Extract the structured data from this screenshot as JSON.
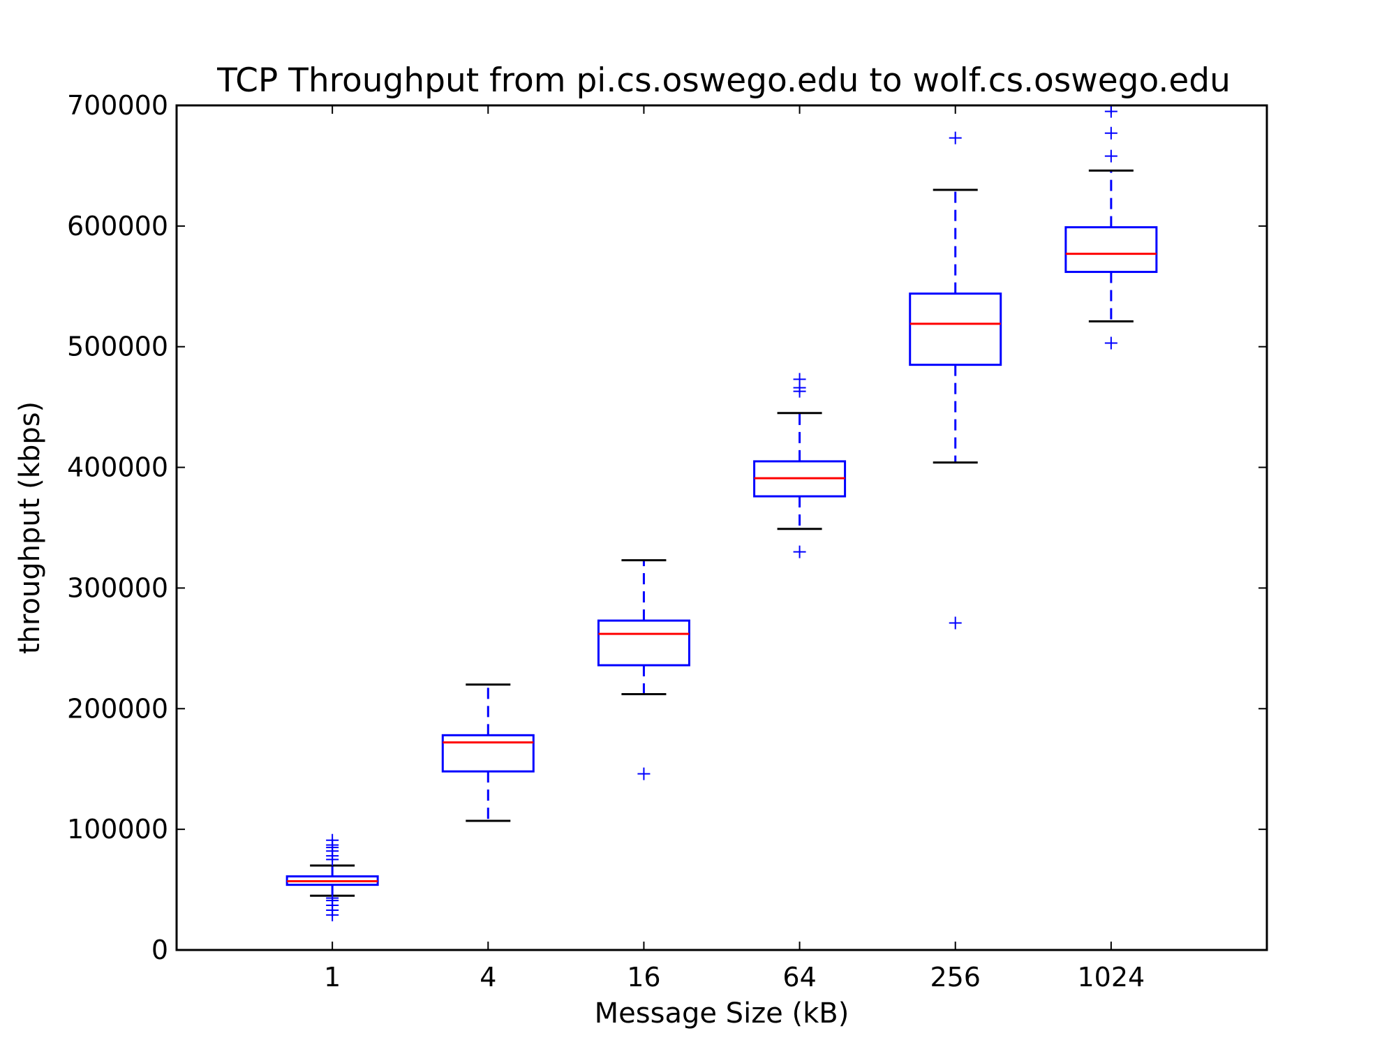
{
  "chart_data": {
    "type": "box",
    "title": "TCP Throughput from pi.cs.oswego.edu to wolf.cs.oswego.edu",
    "xlabel": "Message Size (kB)",
    "ylabel": "throughput (kbps)",
    "ylim": [
      0,
      700000
    ],
    "yticks": [
      "0",
      "100000",
      "200000",
      "300000",
      "400000",
      "500000",
      "600000",
      "700000"
    ],
    "grid": false,
    "colors": {
      "box": "#0000ff",
      "median": "#ff0000",
      "cap": "#000000",
      "whisker": "#0000ff",
      "outlier": "#0000ff"
    },
    "categories": [
      "1",
      "4",
      "16",
      "64",
      "256",
      "1024"
    ],
    "boxes": [
      {
        "category": "1",
        "whisker_low": 45000,
        "q1": 54000,
        "median": 57000,
        "q3": 61000,
        "whisker_high": 70000,
        "outliers": [
          29000,
          33000,
          37000,
          41000,
          43000,
          75000,
          78000,
          82000,
          85000,
          87000,
          91000
        ]
      },
      {
        "category": "4",
        "whisker_low": 107000,
        "q1": 148000,
        "median": 172000,
        "q3": 178000,
        "whisker_high": 220000,
        "outliers": []
      },
      {
        "category": "16",
        "whisker_low": 212000,
        "q1": 236000,
        "median": 262000,
        "q3": 273000,
        "whisker_high": 323000,
        "outliers": [
          146000
        ]
      },
      {
        "category": "64",
        "whisker_low": 349000,
        "q1": 376000,
        "median": 391000,
        "q3": 405000,
        "whisker_high": 445000,
        "outliers": [
          330000,
          463000,
          466000,
          473000
        ]
      },
      {
        "category": "256",
        "whisker_low": 404000,
        "q1": 485000,
        "median": 519000,
        "q3": 544000,
        "whisker_high": 630000,
        "outliers": [
          271000,
          673000
        ]
      },
      {
        "category": "1024",
        "whisker_low": 521000,
        "q1": 562000,
        "median": 577000,
        "q3": 599000,
        "whisker_high": 646000,
        "outliers": [
          503000,
          658000,
          677000,
          695000
        ]
      }
    ]
  }
}
